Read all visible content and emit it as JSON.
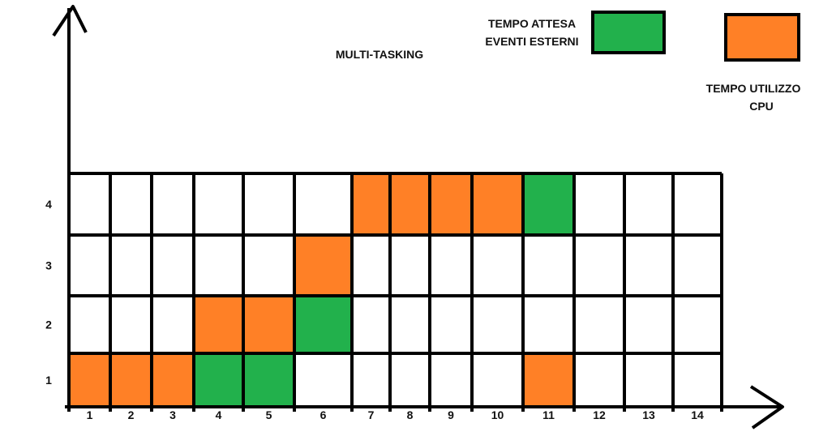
{
  "title": "MULTI-TASKING",
  "colors": {
    "cpu": "#FF8026",
    "wait": "#22B14C",
    "grid": "#000000",
    "background": "#FFFFFF"
  },
  "legend": {
    "wait": {
      "line1": "TEMPO ATTESA",
      "line2": "EVENTI ESTERNI",
      "color": "#22B14C"
    },
    "cpu": {
      "line1": "TEMPO UTILIZZO",
      "line2": "CPU",
      "color": "#FF8026"
    }
  },
  "columns": [
    "1",
    "2",
    "3",
    "4",
    "5",
    "6",
    "7",
    "8",
    "9",
    "10",
    "11",
    "12",
    "13",
    "14"
  ],
  "rows": [
    "1",
    "2",
    "3",
    "4"
  ],
  "cells": [
    {
      "row": 1,
      "col": 1,
      "state": "cpu"
    },
    {
      "row": 1,
      "col": 2,
      "state": "cpu"
    },
    {
      "row": 1,
      "col": 3,
      "state": "cpu"
    },
    {
      "row": 1,
      "col": 4,
      "state": "wait"
    },
    {
      "row": 1,
      "col": 5,
      "state": "wait"
    },
    {
      "row": 1,
      "col": 11,
      "state": "cpu"
    },
    {
      "row": 2,
      "col": 4,
      "state": "cpu"
    },
    {
      "row": 2,
      "col": 5,
      "state": "cpu"
    },
    {
      "row": 2,
      "col": 6,
      "state": "wait"
    },
    {
      "row": 3,
      "col": 6,
      "state": "cpu"
    },
    {
      "row": 4,
      "col": 7,
      "state": "cpu"
    },
    {
      "row": 4,
      "col": 8,
      "state": "cpu"
    },
    {
      "row": 4,
      "col": 9,
      "state": "cpu"
    },
    {
      "row": 4,
      "col": 10,
      "state": "cpu"
    },
    {
      "row": 4,
      "col": 11,
      "state": "wait"
    }
  ]
}
